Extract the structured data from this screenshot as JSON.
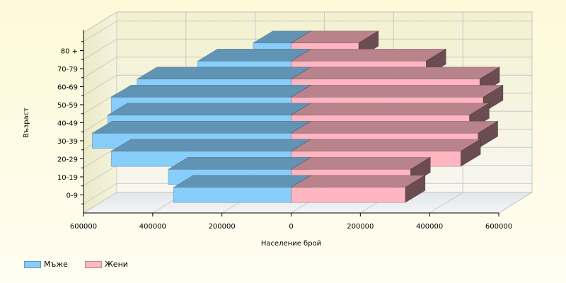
{
  "chart_data": {
    "type": "bar",
    "orientation": "horizontal",
    "style": "3d",
    "title": "",
    "xlabel": "Население брой",
    "ylabel": "Възраст",
    "categories": [
      "0-9",
      "10-19",
      "20-29",
      "30-39",
      "40-49",
      "50-59",
      "60-69",
      "70-79",
      "80 +"
    ],
    "series": [
      {
        "name": "Мъже",
        "color": "#87cefa",
        "side": "left",
        "values": [
          340000,
          355000,
          520000,
          575000,
          530000,
          520000,
          445000,
          270000,
          110000
        ]
      },
      {
        "name": "Жени",
        "color": "#ffb6c1",
        "side": "right",
        "values": [
          330000,
          345000,
          490000,
          540000,
          515000,
          555000,
          545000,
          390000,
          195000
        ]
      }
    ],
    "x_ticks": [
      {
        "value": -600000,
        "label": "600000"
      },
      {
        "value": -400000,
        "label": "400000"
      },
      {
        "value": -200000,
        "label": "200000"
      },
      {
        "value": 0,
        "label": "0"
      },
      {
        "value": 200000,
        "label": "200000"
      },
      {
        "value": 400000,
        "label": "400000"
      },
      {
        "value": 600000,
        "label": "600000"
      }
    ],
    "xlim": [
      -600000,
      600000
    ],
    "grid": true,
    "legend_position": "bottom-left"
  }
}
